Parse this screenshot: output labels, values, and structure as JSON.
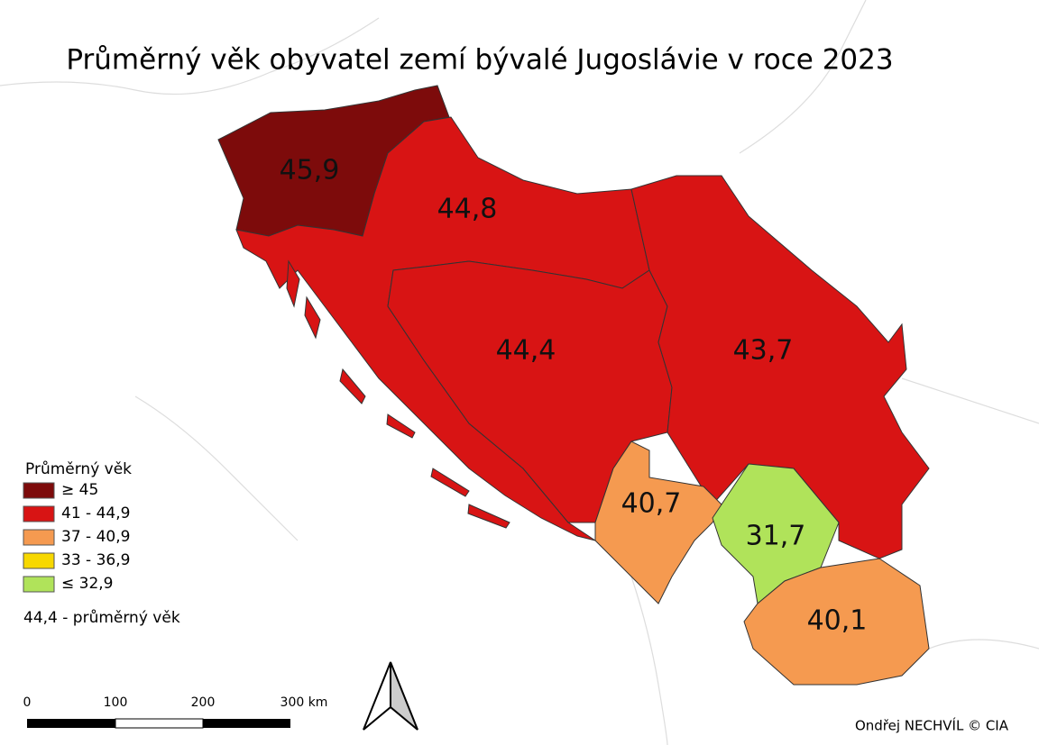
{
  "title": "Průměrný věk obyvatel zemí bývalé Jugoslávie v roce 2023",
  "regions": [
    {
      "label": "45,9",
      "color": "#7d0b0b"
    },
    {
      "label": "44,8",
      "color": "#d81414"
    },
    {
      "label": "44,4",
      "color": "#d81414"
    },
    {
      "label": "43,7",
      "color": "#d81414"
    },
    {
      "label": "40,7",
      "color": "#f59a50"
    },
    {
      "label": "31,7",
      "color": "#b0e35a"
    },
    {
      "label": "40,1",
      "color": "#f59a50"
    }
  ],
  "legend": {
    "title": "Průměrný věk",
    "items": [
      {
        "label": "≥ 45",
        "color": "#7d0b0b"
      },
      {
        "label": "41 - 44,9",
        "color": "#d81414"
      },
      {
        "label": "37 - 40,9",
        "color": "#f59a50"
      },
      {
        "label": "33 - 36,9",
        "color": "#f7d800"
      },
      {
        "label": "≤ 32,9",
        "color": "#b0e35a"
      }
    ],
    "note": "44,4 - průměrný věk"
  },
  "scale_bar": [
    "0",
    "100",
    "200",
    "300 km"
  ],
  "credit": "Ondřej NECHVÍL © CIA"
}
